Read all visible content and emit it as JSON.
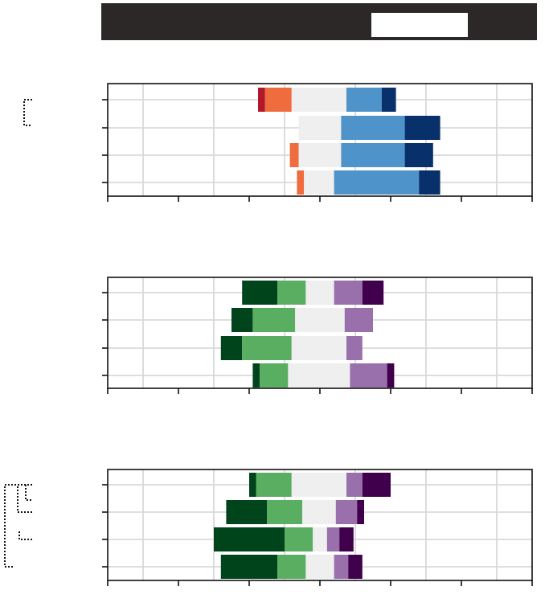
{
  "header": {
    "title": ""
  },
  "chart_data": [
    {
      "type": "bar",
      "stacked": "diverging",
      "title": "",
      "xlim": [
        -6,
        6
      ],
      "grid": true,
      "rows": [
        {
          "label": "",
          "segments": [
            {
              "start": -1.75,
              "end": -1.55,
              "color": "#b2182b"
            },
            {
              "start": -1.55,
              "end": -0.8,
              "color": "#ef6c3f"
            },
            {
              "start": -0.8,
              "end": 0.75,
              "color": "#efefef"
            },
            {
              "start": 0.75,
              "end": 1.75,
              "color": "#4f93cb"
            },
            {
              "start": 1.75,
              "end": 2.15,
              "color": "#08306b"
            }
          ]
        },
        {
          "label": "",
          "segments": [
            {
              "start": -0.6,
              "end": 0.6,
              "color": "#efefef"
            },
            {
              "start": 0.6,
              "end": 2.4,
              "color": "#4f93cb"
            },
            {
              "start": 2.4,
              "end": 3.4,
              "color": "#08306b"
            }
          ]
        },
        {
          "label": "",
          "segments": [
            {
              "start": -0.85,
              "end": -0.6,
              "color": "#ef6c3f"
            },
            {
              "start": -0.6,
              "end": 0.6,
              "color": "#efefef"
            },
            {
              "start": 0.6,
              "end": 2.4,
              "color": "#4f93cb"
            },
            {
              "start": 2.4,
              "end": 3.2,
              "color": "#08306b"
            }
          ]
        },
        {
          "label": "",
          "segments": [
            {
              "start": -0.65,
              "end": -0.45,
              "color": "#ef6c3f"
            },
            {
              "start": -0.45,
              "end": 0.4,
              "color": "#efefef"
            },
            {
              "start": 0.4,
              "end": 2.8,
              "color": "#4f93cb"
            },
            {
              "start": 2.8,
              "end": 3.4,
              "color": "#08306b"
            }
          ]
        }
      ]
    },
    {
      "type": "bar",
      "stacked": "diverging",
      "title": "",
      "xlim": [
        -6,
        6
      ],
      "grid": true,
      "rows": [
        {
          "label": "",
          "segments": [
            {
              "start": -2.2,
              "end": -1.2,
              "color": "#00441b"
            },
            {
              "start": -1.2,
              "end": -0.4,
              "color": "#5aae61"
            },
            {
              "start": -0.4,
              "end": 0.4,
              "color": "#efefef"
            },
            {
              "start": 0.4,
              "end": 1.2,
              "color": "#9970ab"
            },
            {
              "start": 1.2,
              "end": 1.8,
              "color": "#40004b"
            }
          ]
        },
        {
          "label": "",
          "segments": [
            {
              "start": -2.5,
              "end": -1.9,
              "color": "#00441b"
            },
            {
              "start": -1.9,
              "end": -0.7,
              "color": "#5aae61"
            },
            {
              "start": -0.7,
              "end": 0.7,
              "color": "#efefef"
            },
            {
              "start": 0.7,
              "end": 1.5,
              "color": "#9970ab"
            }
          ]
        },
        {
          "label": "",
          "segments": [
            {
              "start": -2.8,
              "end": -2.2,
              "color": "#00441b"
            },
            {
              "start": -2.2,
              "end": -0.8,
              "color": "#5aae61"
            },
            {
              "start": -0.8,
              "end": 0.75,
              "color": "#efefef"
            },
            {
              "start": 0.75,
              "end": 1.2,
              "color": "#9970ab"
            }
          ]
        },
        {
          "label": "",
          "segments": [
            {
              "start": -1.9,
              "end": -1.7,
              "color": "#00441b"
            },
            {
              "start": -1.7,
              "end": -0.9,
              "color": "#5aae61"
            },
            {
              "start": -0.9,
              "end": 0.85,
              "color": "#efefef"
            },
            {
              "start": 0.85,
              "end": 1.9,
              "color": "#9970ab"
            },
            {
              "start": 1.9,
              "end": 2.1,
              "color": "#40004b"
            }
          ]
        }
      ]
    },
    {
      "type": "bar",
      "stacked": "diverging",
      "title": "",
      "xlim": [
        -6,
        6
      ],
      "grid": true,
      "rows": [
        {
          "label": "",
          "segments": [
            {
              "start": -2.0,
              "end": -1.8,
              "color": "#00441b"
            },
            {
              "start": -1.8,
              "end": -0.8,
              "color": "#5aae61"
            },
            {
              "start": -0.8,
              "end": 0.75,
              "color": "#efefef"
            },
            {
              "start": 0.75,
              "end": 1.2,
              "color": "#9970ab"
            },
            {
              "start": 1.2,
              "end": 2.0,
              "color": "#40004b"
            }
          ]
        },
        {
          "label": "",
          "segments": [
            {
              "start": -2.65,
              "end": -1.5,
              "color": "#00441b"
            },
            {
              "start": -1.5,
              "end": -0.5,
              "color": "#5aae61"
            },
            {
              "start": -0.5,
              "end": 0.45,
              "color": "#efefef"
            },
            {
              "start": 0.45,
              "end": 1.05,
              "color": "#9970ab"
            },
            {
              "start": 1.05,
              "end": 1.25,
              "color": "#40004b"
            }
          ]
        },
        {
          "label": "",
          "segments": [
            {
              "start": -3.0,
              "end": -1.0,
              "color": "#00441b"
            },
            {
              "start": -1.0,
              "end": -0.2,
              "color": "#5aae61"
            },
            {
              "start": -0.2,
              "end": 0.2,
              "color": "#efefef"
            },
            {
              "start": 0.2,
              "end": 0.55,
              "color": "#9970ab"
            },
            {
              "start": 0.55,
              "end": 0.95,
              "color": "#40004b"
            }
          ]
        },
        {
          "label": "",
          "segments": [
            {
              "start": -2.8,
              "end": -1.2,
              "color": "#00441b"
            },
            {
              "start": -1.2,
              "end": -0.4,
              "color": "#5aae61"
            },
            {
              "start": -0.4,
              "end": 0.4,
              "color": "#efefef"
            },
            {
              "start": 0.4,
              "end": 0.8,
              "color": "#9970ab"
            },
            {
              "start": 0.8,
              "end": 1.2,
              "color": "#40004b"
            }
          ]
        }
      ]
    }
  ]
}
